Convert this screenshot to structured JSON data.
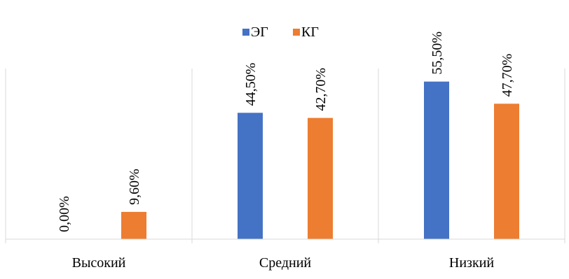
{
  "chart_data": {
    "type": "bar",
    "categories": [
      "Высокий",
      "Средний",
      "Низкий"
    ],
    "series": [
      {
        "name": "ЭГ",
        "values": [
          0.0,
          44.5,
          55.5
        ],
        "labels": [
          "0,00%",
          "44,50%",
          "55,50%"
        ],
        "color": "#4472C4"
      },
      {
        "name": "КГ",
        "values": [
          9.6,
          42.7,
          47.7
        ],
        "labels": [
          "9,60%",
          "42,70%",
          "47,70%"
        ],
        "color": "#ED7D31"
      }
    ],
    "title": "",
    "xlabel": "",
    "ylabel": "",
    "ylim": [
      0,
      60
    ],
    "grid": false,
    "legend_position": "top"
  }
}
